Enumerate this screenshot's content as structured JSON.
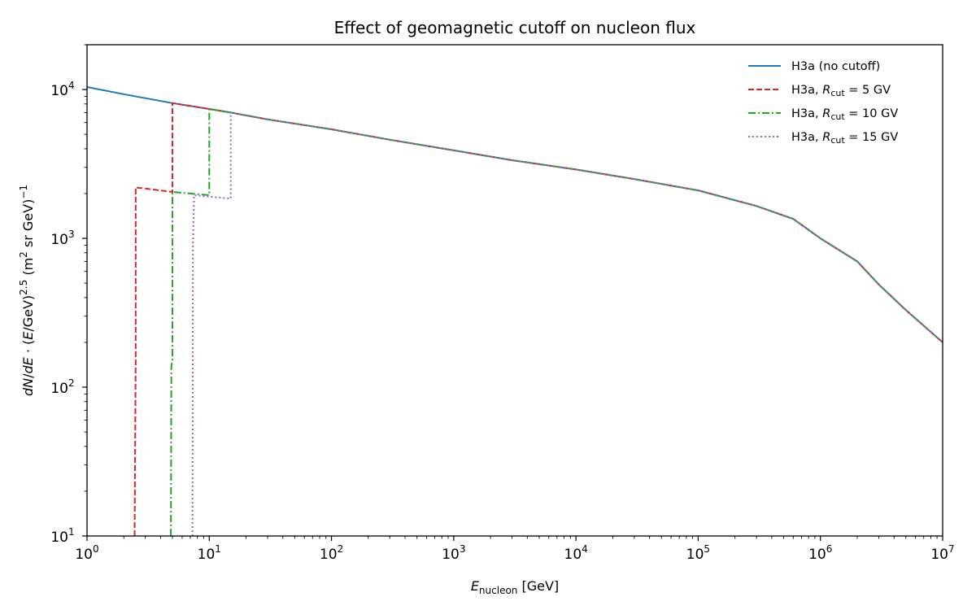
{
  "chart_data": {
    "type": "line",
    "title": "Effect of geomagnetic cutoff on nucleon flux",
    "xlabel": "E_nucleon [GeV]",
    "xlabel_parts": {
      "main": "E",
      "sub": "nucleon",
      "unit": " [GeV]"
    },
    "ylabel": "dN/dE · (E/GeV)^2.5 (m^2 sr GeV)^-1",
    "xscale": "log",
    "yscale": "log",
    "xlim": [
      1,
      10000000
    ],
    "ylim": [
      10,
      20000
    ],
    "grid": false,
    "legend_position": "upper right",
    "x_ticks": [
      {
        "value": 1,
        "base": "10",
        "exp": "0"
      },
      {
        "value": 10,
        "base": "10",
        "exp": "1"
      },
      {
        "value": 100,
        "base": "10",
        "exp": "2"
      },
      {
        "value": 1000,
        "base": "10",
        "exp": "3"
      },
      {
        "value": 10000,
        "base": "10",
        "exp": "4"
      },
      {
        "value": 100000,
        "base": "10",
        "exp": "5"
      },
      {
        "value": 1000000,
        "base": "10",
        "exp": "6"
      },
      {
        "value": 10000000,
        "base": "10",
        "exp": "7"
      }
    ],
    "y_ticks": [
      {
        "value": 10,
        "base": "10",
        "exp": "1"
      },
      {
        "value": 100,
        "base": "10",
        "exp": "2"
      },
      {
        "value": 1000,
        "base": "10",
        "exp": "3"
      },
      {
        "value": 10000,
        "base": "10",
        "exp": "4"
      }
    ],
    "series": [
      {
        "name": "H3a (no cutoff)",
        "legend": {
          "prefix": "H3a (no cutoff)",
          "has_rcut": false
        },
        "color": "#1f77b4",
        "style": "solid",
        "x": [
          1,
          2,
          5,
          10,
          15,
          30,
          100,
          300,
          1000,
          3000,
          10000,
          30000,
          100000,
          300000,
          600000,
          1000000,
          2000000,
          3000000,
          5000000,
          10000000
        ],
        "y": [
          10400,
          9300,
          8100,
          7400,
          7000,
          6300,
          5400,
          4600,
          3900,
          3350,
          2900,
          2500,
          2100,
          1650,
          1350,
          1000,
          700,
          490,
          330,
          200
        ]
      },
      {
        "name": "H3a, R_cut = 5 GV",
        "legend": {
          "prefix": "H3a, ",
          "has_rcut": true,
          "value": " = 5 GV"
        },
        "color": "#d62728",
        "style": "dashed",
        "x": [
          2.45,
          2.5,
          2.5,
          5.0,
          5.0,
          10,
          15,
          30,
          100,
          300,
          1000,
          3000,
          10000,
          30000,
          100000,
          300000,
          600000,
          1000000,
          2000000,
          3000000,
          5000000,
          10000000
        ],
        "y": [
          10,
          150,
          2200,
          2050,
          8100,
          7400,
          7000,
          6300,
          5400,
          4600,
          3900,
          3350,
          2900,
          2500,
          2100,
          1650,
          1350,
          1000,
          700,
          490,
          330,
          200
        ]
      },
      {
        "name": "H3a, R_cut = 10 GV",
        "legend": {
          "prefix": "H3a, ",
          "has_rcut": true,
          "value": " = 10 GV"
        },
        "color": "#2ca02c",
        "style": "dashdot",
        "x": [
          4.85,
          4.9,
          5.0,
          5.0,
          10.0,
          10.0,
          15,
          30,
          100,
          300,
          1000,
          3000,
          10000,
          30000,
          100000,
          300000,
          600000,
          1000000,
          2000000,
          3000000,
          5000000,
          10000000
        ],
        "y": [
          10,
          140,
          150,
          2050,
          1950,
          7400,
          7000,
          6300,
          5400,
          4600,
          3900,
          3350,
          2900,
          2500,
          2100,
          1650,
          1350,
          1000,
          700,
          490,
          330,
          200
        ]
      },
      {
        "name": "H3a, R_cut = 15 GV",
        "legend": {
          "prefix": "H3a, ",
          "has_rcut": true,
          "value": " = 15 GV"
        },
        "color": "#9467bd",
        "style": "dotted",
        "x": [
          7.3,
          7.35,
          7.5,
          7.5,
          15.0,
          15.0,
          30,
          100,
          300,
          1000,
          3000,
          10000,
          30000,
          100000,
          300000,
          600000,
          1000000,
          2000000,
          3000000,
          5000000,
          10000000
        ],
        "y": [
          10,
          900,
          1850,
          1950,
          1850,
          7000,
          6300,
          5400,
          4600,
          3900,
          3350,
          2900,
          2500,
          2100,
          1650,
          1350,
          1000,
          700,
          490,
          330,
          200
        ]
      }
    ]
  },
  "legend_rcut_symbol": {
    "main": "R",
    "sub": "cut"
  }
}
